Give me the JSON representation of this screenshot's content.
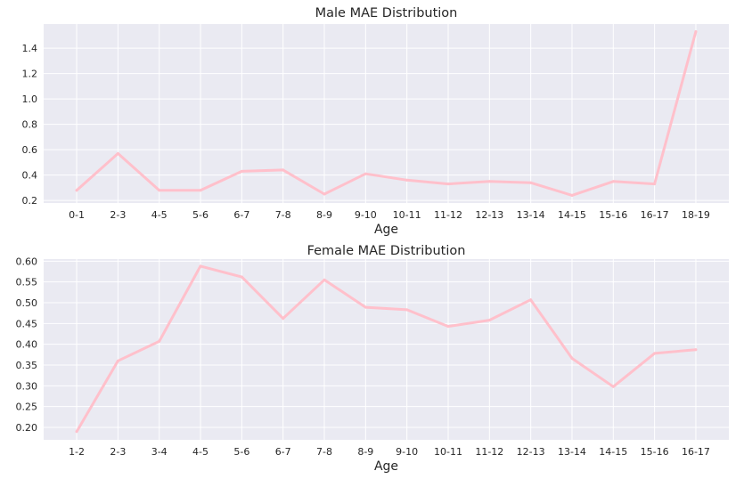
{
  "chart_data": [
    {
      "type": "line",
      "title": "Male MAE Distribution",
      "xlabel": "Age",
      "ylabel": "",
      "categories": [
        "0-1",
        "2-3",
        "4-5",
        "5-6",
        "6-7",
        "7-8",
        "8-9",
        "9-10",
        "10-11",
        "11-12",
        "12-13",
        "13-14",
        "14-15",
        "15-16",
        "16-17",
        "18-19"
      ],
      "values": [
        0.28,
        0.57,
        0.28,
        0.28,
        0.43,
        0.44,
        0.25,
        0.41,
        0.36,
        0.33,
        0.35,
        0.34,
        0.24,
        0.35,
        0.33,
        1.53
      ],
      "ylim": [
        0.18,
        1.59
      ],
      "yticks": [
        0.2,
        0.4,
        0.6,
        0.8,
        1.0,
        1.2,
        1.4
      ],
      "ytick_labels": [
        "0.2",
        "0.4",
        "0.6",
        "0.8",
        "1.0",
        "1.2",
        "1.4"
      ],
      "grid": true,
      "line_color": "#ffc0cb",
      "background": "#eaeaf2"
    },
    {
      "type": "line",
      "title": "Female MAE Distribution",
      "xlabel": "Age",
      "ylabel": "",
      "categories": [
        "1-2",
        "2-3",
        "3-4",
        "4-5",
        "5-6",
        "6-7",
        "7-8",
        "8-9",
        "9-10",
        "10-11",
        "11-12",
        "12-13",
        "13-14",
        "14-15",
        "15-16",
        "16-17"
      ],
      "values": [
        0.19,
        0.36,
        0.407,
        0.588,
        0.562,
        0.462,
        0.555,
        0.489,
        0.483,
        0.443,
        0.458,
        0.507,
        0.366,
        0.298,
        0.378,
        0.387
      ],
      "ylim": [
        0.17,
        0.605
      ],
      "yticks": [
        0.2,
        0.25,
        0.3,
        0.35,
        0.4,
        0.45,
        0.5,
        0.55,
        0.6
      ],
      "ytick_labels": [
        "0.20",
        "0.25",
        "0.30",
        "0.35",
        "0.40",
        "0.45",
        "0.50",
        "0.55",
        "0.60"
      ],
      "grid": true,
      "line_color": "#ffc0cb",
      "background": "#eaeaf2"
    }
  ]
}
